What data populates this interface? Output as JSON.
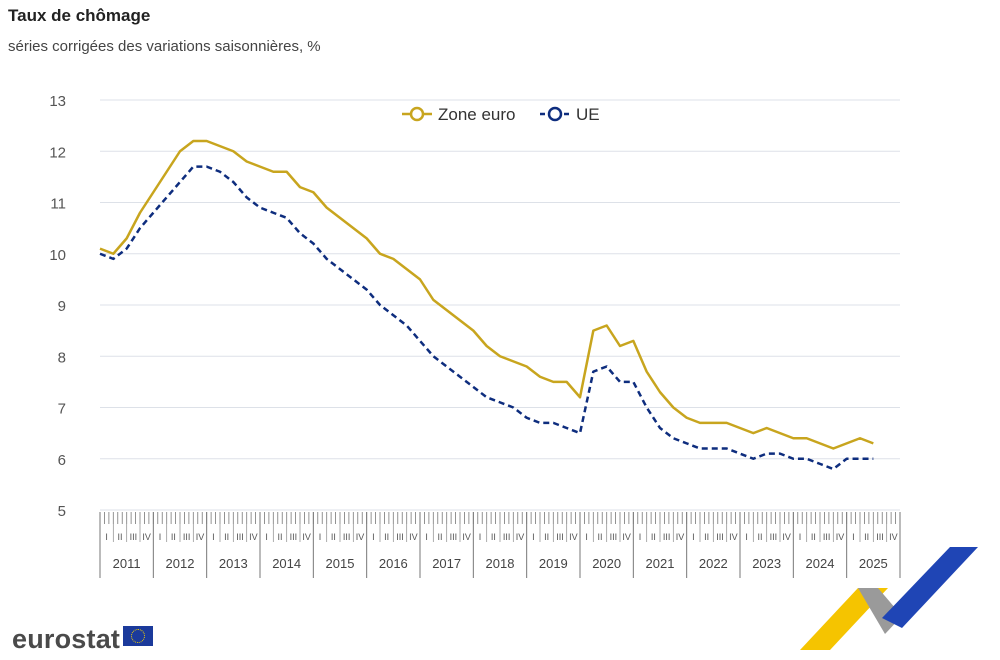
{
  "title": "Taux de chômage",
  "subtitle": "séries corrigées des variations saisonnières, %",
  "logo_text": "eurostat",
  "chart_data": {
    "type": "line",
    "title": "Taux de chômage",
    "subtitle": "séries corrigées des variations saisonnières, %",
    "ylim": [
      5,
      13
    ],
    "yticks": [
      5,
      6,
      7,
      8,
      9,
      10,
      11,
      12,
      13
    ],
    "grid": true,
    "legend_position": "top-center",
    "years": [
      "2011",
      "2012",
      "2013",
      "2014",
      "2015",
      "2016",
      "2017",
      "2018",
      "2019",
      "2020",
      "2021",
      "2022",
      "2023",
      "2024",
      "2025"
    ],
    "quarters": [
      "I",
      "II",
      "III",
      "IV"
    ],
    "x": [
      "2011-01",
      "2011-04",
      "2011-07",
      "2011-10",
      "2012-01",
      "2012-04",
      "2012-07",
      "2012-10",
      "2013-01",
      "2013-04",
      "2013-07",
      "2013-10",
      "2014-01",
      "2014-04",
      "2014-07",
      "2014-10",
      "2015-01",
      "2015-04",
      "2015-07",
      "2015-10",
      "2016-01",
      "2016-04",
      "2016-07",
      "2016-10",
      "2017-01",
      "2017-04",
      "2017-07",
      "2017-10",
      "2018-01",
      "2018-04",
      "2018-07",
      "2018-10",
      "2019-01",
      "2019-04",
      "2019-07",
      "2019-10",
      "2020-01",
      "2020-04",
      "2020-07",
      "2020-10",
      "2021-01",
      "2021-04",
      "2021-07",
      "2021-10",
      "2022-01",
      "2022-04",
      "2022-07",
      "2022-10",
      "2023-01",
      "2023-04",
      "2023-07",
      "2023-10",
      "2024-01",
      "2024-04",
      "2024-07",
      "2024-10",
      "2025-01",
      "2025-04",
      "2025-07"
    ],
    "series": [
      {
        "name": "Zone euro",
        "color": "#c8a51e",
        "dash": "solid",
        "values": [
          10.1,
          10.0,
          10.3,
          10.8,
          11.2,
          11.6,
          12.0,
          12.2,
          12.2,
          12.1,
          12.0,
          11.8,
          11.7,
          11.6,
          11.6,
          11.3,
          11.2,
          10.9,
          10.7,
          10.5,
          10.3,
          10.0,
          9.9,
          9.7,
          9.5,
          9.1,
          8.9,
          8.7,
          8.5,
          8.2,
          8.0,
          7.9,
          7.8,
          7.6,
          7.5,
          7.5,
          7.2,
          8.5,
          8.6,
          8.2,
          8.3,
          7.7,
          7.3,
          7.0,
          6.8,
          6.7,
          6.7,
          6.7,
          6.6,
          6.5,
          6.6,
          6.5,
          6.4,
          6.4,
          6.3,
          6.2,
          6.3,
          6.4,
          6.3
        ]
      },
      {
        "name": "UE",
        "color": "#0e2d7e",
        "dash": "dashed",
        "values": [
          10.0,
          9.9,
          10.1,
          10.5,
          10.8,
          11.1,
          11.4,
          11.7,
          11.7,
          11.6,
          11.4,
          11.1,
          10.9,
          10.8,
          10.7,
          10.4,
          10.2,
          9.9,
          9.7,
          9.5,
          9.3,
          9.0,
          8.8,
          8.6,
          8.3,
          8.0,
          7.8,
          7.6,
          7.4,
          7.2,
          7.1,
          7.0,
          6.8,
          6.7,
          6.7,
          6.6,
          6.5,
          7.7,
          7.8,
          7.5,
          7.5,
          7.0,
          6.6,
          6.4,
          6.3,
          6.2,
          6.2,
          6.2,
          6.1,
          6.0,
          6.1,
          6.1,
          6.0,
          6.0,
          5.9,
          5.8,
          6.0,
          6.0,
          6.0
        ]
      }
    ]
  }
}
